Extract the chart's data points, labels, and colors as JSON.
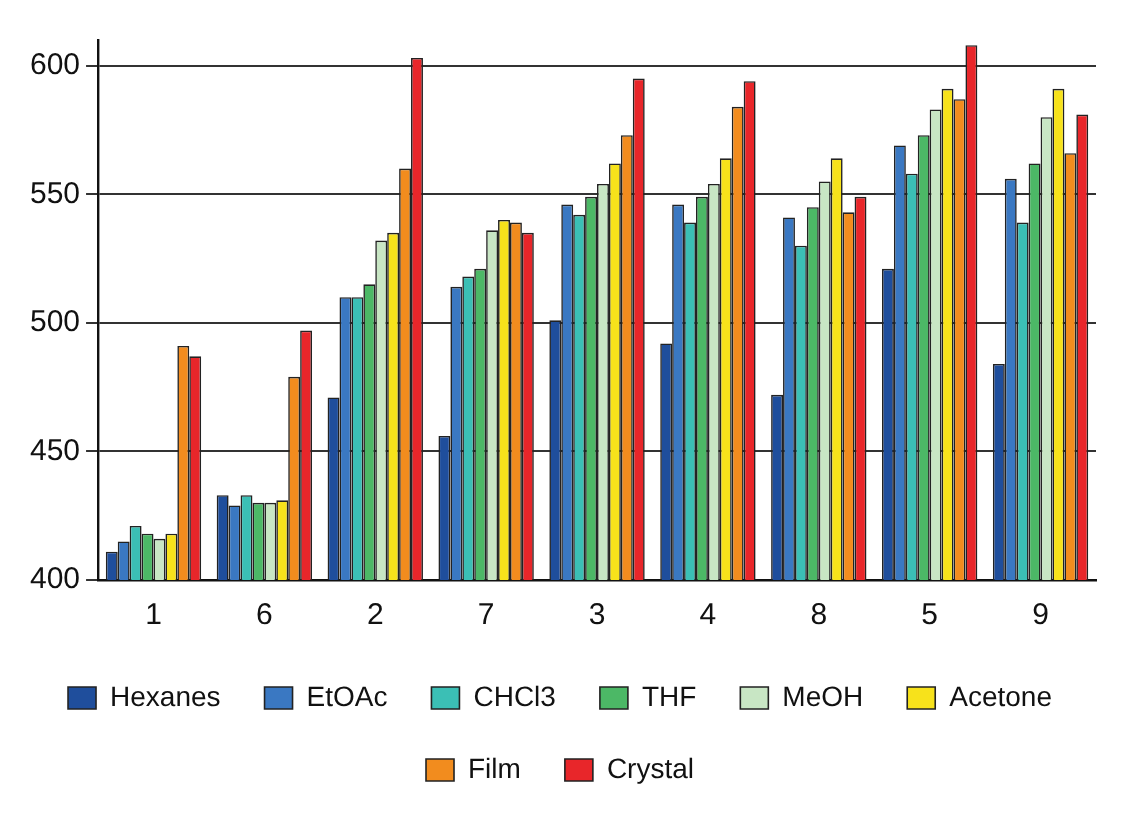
{
  "chart_data": {
    "type": "bar",
    "categories": [
      "1",
      "6",
      "2",
      "7",
      "3",
      "4",
      "8",
      "5",
      "9"
    ],
    "series": [
      {
        "name": "Hexanes",
        "color": "#1f4e9c",
        "values": [
          411,
          433,
          471,
          456,
          501,
          492,
          472,
          521,
          484
        ]
      },
      {
        "name": "EtOAc",
        "color": "#3a78c2",
        "values": [
          415,
          429,
          510,
          514,
          546,
          546,
          541,
          569,
          556
        ]
      },
      {
        "name": "CHCl3",
        "color": "#3bbfb5",
        "values": [
          421,
          433,
          510,
          518,
          542,
          539,
          530,
          558,
          539
        ]
      },
      {
        "name": "THF",
        "color": "#4cb866",
        "values": [
          418,
          430,
          515,
          521,
          549,
          549,
          545,
          573,
          562
        ]
      },
      {
        "name": "MeOH",
        "color": "#c8e6c4",
        "values": [
          416,
          430,
          532,
          536,
          554,
          554,
          555,
          583,
          580
        ]
      },
      {
        "name": "Acetone",
        "color": "#f7e21b",
        "values": [
          418,
          431,
          535,
          540,
          562,
          564,
          564,
          591,
          591
        ]
      },
      {
        "name": "Film",
        "color": "#f28c1e",
        "values": [
          491,
          479,
          560,
          539,
          573,
          584,
          543,
          587,
          566
        ]
      },
      {
        "name": "Crystal",
        "color": "#e8262a",
        "values": [
          487,
          497,
          603,
          535,
          595,
          594,
          549,
          608,
          581
        ]
      }
    ],
    "ylim": [
      400,
      610
    ],
    "yticks": [
      400,
      450,
      500,
      550,
      600
    ],
    "grid": "y",
    "legend": "bottom"
  }
}
